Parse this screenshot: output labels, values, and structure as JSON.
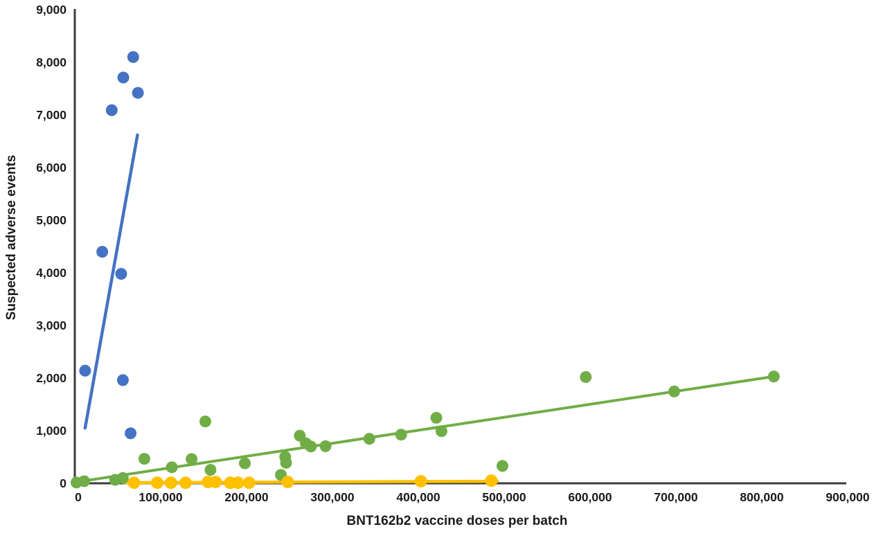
{
  "chart_data": {
    "type": "scatter",
    "title": "",
    "xlabel": "BNT162b2 vaccine doses per batch",
    "ylabel": "Suspected adverse events",
    "xlim": [
      0,
      900000
    ],
    "ylim": [
      0,
      9000
    ],
    "x_ticks": [
      0,
      100000,
      200000,
      300000,
      400000,
      500000,
      600000,
      700000,
      800000,
      900000
    ],
    "x_tick_labels": [
      "0",
      "100,000",
      "200,000",
      "300,000",
      "400,000",
      "500,000",
      "600,000",
      "700,000",
      "800,000",
      "900,000"
    ],
    "y_ticks": [
      0,
      1000,
      2000,
      3000,
      4000,
      5000,
      6000,
      7000,
      8000,
      9000
    ],
    "y_tick_labels": [
      "0",
      "1,000",
      "2,000",
      "3,000",
      "4,000",
      "5,000",
      "6,000",
      "7,000",
      "8,000",
      "9,000"
    ],
    "grid": false,
    "legend": false,
    "background_color": "#ffffff",
    "axis_color": "#3b3b3b",
    "tick_label_color": "#1a1a1a",
    "series": [
      {
        "name": "green-series",
        "color": "#70AD47",
        "marker": "circle",
        "marker_radius": 8.5,
        "line_width": 4,
        "points": [
          [
            2000,
            15
          ],
          [
            11000,
            40
          ],
          [
            47000,
            65
          ],
          [
            56000,
            100
          ],
          [
            81000,
            465
          ],
          [
            113000,
            305
          ],
          [
            136000,
            460
          ],
          [
            152000,
            1175
          ],
          [
            158000,
            255
          ],
          [
            198000,
            380
          ],
          [
            240000,
            160
          ],
          [
            245000,
            500
          ],
          [
            246000,
            390
          ],
          [
            262000,
            905
          ],
          [
            269000,
            760
          ],
          [
            275000,
            700
          ],
          [
            292000,
            705
          ],
          [
            343000,
            845
          ],
          [
            380000,
            925
          ],
          [
            421000,
            1245
          ],
          [
            427000,
            990
          ],
          [
            498000,
            330
          ],
          [
            595000,
            2020
          ],
          [
            698000,
            1745
          ],
          [
            814000,
            2030
          ]
        ],
        "trendline": [
          [
            0,
            20
          ],
          [
            814000,
            2030
          ]
        ]
      },
      {
        "name": "yellow-series",
        "color": "#FFC000",
        "marker": "circle",
        "marker_radius": 9,
        "line_width": 4.5,
        "points": [
          [
            69000,
            10
          ],
          [
            96000,
            10
          ],
          [
            112000,
            10
          ],
          [
            129000,
            10
          ],
          [
            155000,
            25
          ],
          [
            164000,
            25
          ],
          [
            181000,
            10
          ],
          [
            190000,
            10
          ],
          [
            203000,
            10
          ],
          [
            248000,
            25
          ],
          [
            403000,
            40
          ],
          [
            485000,
            50
          ]
        ],
        "trendline": [
          [
            58000,
            12
          ],
          [
            492000,
            38
          ]
        ]
      },
      {
        "name": "blue-series",
        "color": "#4472C4",
        "marker": "circle",
        "marker_radius": 8.5,
        "line_width": 4.5,
        "points": [
          [
            12000,
            2140
          ],
          [
            32000,
            4400
          ],
          [
            43000,
            7090
          ],
          [
            54000,
            3980
          ],
          [
            56000,
            1960
          ],
          [
            56500,
            7710
          ],
          [
            65000,
            950
          ],
          [
            68000,
            8100
          ],
          [
            73500,
            7420
          ]
        ],
        "trendline": [
          [
            12000,
            1050
          ],
          [
            73000,
            6620
          ]
        ]
      }
    ]
  }
}
